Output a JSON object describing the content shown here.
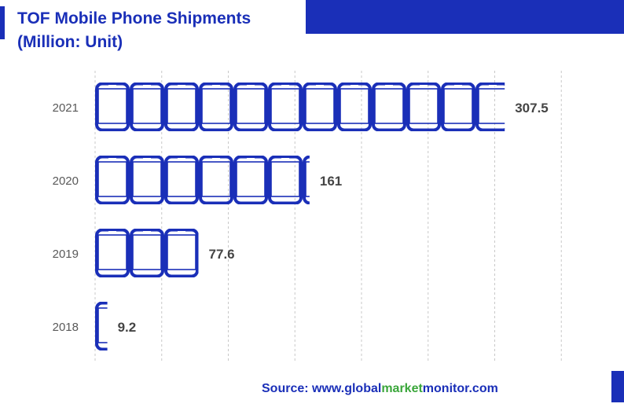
{
  "title_line1": "TOF Mobile Phone Shipments",
  "title_line2": "(Million: Unit)",
  "source": {
    "prefix": "Source: www.",
    "p1": "global",
    "p2": "market",
    "p3": "monitor",
    "p4": ".com"
  },
  "colors": {
    "brand": "#1a2fb8",
    "accent_green": "#3aa63a",
    "value_text": "#444444",
    "tick_text": "#595959",
    "grid": "#c8c8c8"
  },
  "icon": "mobile-phone-icon",
  "chart_data": {
    "type": "bar",
    "orientation": "horizontal",
    "title": "TOF Mobile Phone Shipments",
    "subtitle": "(Million: Unit)",
    "categories": [
      "2021",
      "2020",
      "2019",
      "2018"
    ],
    "values": [
      307.5,
      161,
      77.6,
      9.2
    ],
    "xlim": [
      0,
      350
    ],
    "grid": "vertical-dashed",
    "legend": "none",
    "data_labels": [
      "307.5",
      "161",
      "77.6",
      "9.2"
    ]
  }
}
